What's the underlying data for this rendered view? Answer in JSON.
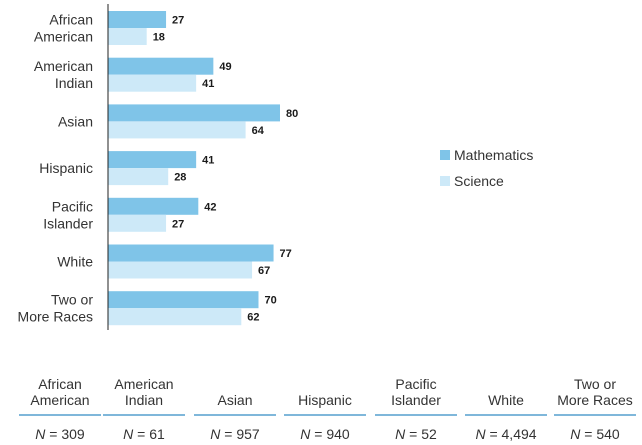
{
  "chart_data": {
    "type": "bar",
    "orientation": "horizontal",
    "categories": [
      "African\nAmerican",
      "American\nIndian",
      "Asian",
      "Hispanic",
      "Pacific\nIslander",
      "White",
      "Two or\nMore Races"
    ],
    "series": [
      {
        "name": "Mathematics",
        "values": [
          27,
          49,
          80,
          41,
          42,
          77,
          70
        ],
        "color": "#7fc4e8"
      },
      {
        "name": "Science",
        "values": [
          18,
          41,
          64,
          28,
          27,
          67,
          62
        ],
        "color": "#cde9f8"
      }
    ],
    "xlim": [
      0,
      100
    ],
    "grid": false,
    "legend": "right",
    "title": "",
    "xlabel": "",
    "ylabel": ""
  },
  "table": {
    "headers": [
      "African\nAmerican",
      "American\nIndian",
      "Asian",
      "Hispanic",
      "Pacific\nIslander",
      "White",
      "Two or\nMore Races"
    ],
    "n_values": [
      "309",
      "61",
      "957",
      "940",
      "52",
      "4,494",
      "540"
    ],
    "n_prefix": "N",
    "rule_color": "#7fb7da"
  }
}
